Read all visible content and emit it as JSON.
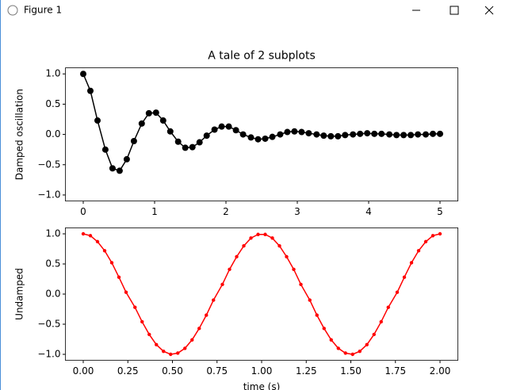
{
  "window": {
    "title": "Figure 1"
  },
  "chart_data": [
    {
      "type": "line",
      "title": "A tale of 2 subplots",
      "ylabel": "Damped oscillation",
      "x": [
        0,
        0.1,
        0.2,
        0.31,
        0.41,
        0.51,
        0.61,
        0.71,
        0.82,
        0.92,
        1.02,
        1.12,
        1.22,
        1.33,
        1.43,
        1.53,
        1.63,
        1.73,
        1.84,
        1.94,
        2.04,
        2.14,
        2.24,
        2.35,
        2.45,
        2.55,
        2.65,
        2.76,
        2.86,
        2.96,
        3.06,
        3.16,
        3.27,
        3.37,
        3.47,
        3.57,
        3.67,
        3.78,
        3.88,
        3.98,
        4.08,
        4.18,
        4.29,
        4.39,
        4.49,
        4.59,
        4.69,
        4.8,
        4.9,
        5
      ],
      "series": [
        {
          "color": "#000000",
          "marker": "o",
          "values": [
            1,
            0.72,
            0.23,
            -0.25,
            -0.56,
            -0.6,
            -0.41,
            -0.11,
            0.18,
            0.35,
            0.36,
            0.23,
            0.05,
            -0.12,
            -0.22,
            -0.21,
            -0.13,
            -0.02,
            0.08,
            0.13,
            0.13,
            0.07,
            0,
            -0.05,
            -0.08,
            -0.07,
            -0.04,
            0,
            0.04,
            0.05,
            0.04,
            0.02,
            0,
            -0.02,
            -0.03,
            -0.03,
            -0.01,
            0,
            0.01,
            0.02,
            0.01,
            0.01,
            0,
            -0.01,
            -0.01,
            -0.01,
            0,
            0,
            0.01,
            0.01
          ]
        }
      ],
      "xlim": [
        -0.25,
        5.25
      ],
      "xticks": [
        0,
        1,
        2,
        3,
        4,
        5
      ],
      "ylim": [
        -1.1,
        1.1
      ],
      "yticks": [
        {
          "value": -1,
          "label": "−1.0"
        },
        {
          "value": -0.5,
          "label": "−0.5"
        },
        {
          "value": 0,
          "label": "0.0"
        },
        {
          "value": 0.5,
          "label": "0.5"
        },
        {
          "value": 1,
          "label": "1.0"
        }
      ]
    },
    {
      "type": "line",
      "ylabel": "Undamped",
      "xlabel": "time (s)",
      "x": [
        0,
        0.04,
        0.08,
        0.12,
        0.16,
        0.2,
        0.24,
        0.29,
        0.33,
        0.37,
        0.41,
        0.45,
        0.49,
        0.53,
        0.57,
        0.61,
        0.65,
        0.69,
        0.73,
        0.78,
        0.82,
        0.86,
        0.9,
        0.94,
        0.98,
        1.02,
        1.06,
        1.1,
        1.14,
        1.18,
        1.22,
        1.27,
        1.31,
        1.35,
        1.39,
        1.43,
        1.47,
        1.51,
        1.55,
        1.59,
        1.63,
        1.67,
        1.71,
        1.76,
        1.8,
        1.84,
        1.88,
        1.92,
        1.96,
        2
      ],
      "series": [
        {
          "color": "#ff0000",
          "marker": ".",
          "values": [
            1,
            0.97,
            0.87,
            0.72,
            0.52,
            0.28,
            0.03,
            -0.22,
            -0.46,
            -0.67,
            -0.84,
            -0.95,
            -1,
            -0.98,
            -0.9,
            -0.76,
            -0.57,
            -0.35,
            -0.1,
            0.16,
            0.41,
            0.62,
            0.8,
            0.93,
            0.99,
            0.99,
            0.93,
            0.8,
            0.62,
            0.41,
            0.16,
            -0.1,
            -0.35,
            -0.57,
            -0.76,
            -0.9,
            -0.98,
            -1,
            -0.95,
            -0.84,
            -0.67,
            -0.46,
            -0.22,
            0.03,
            0.28,
            0.52,
            0.72,
            0.87,
            0.97,
            1
          ]
        }
      ],
      "xlim": [
        -0.1,
        2.1
      ],
      "xticks": [
        {
          "value": 0,
          "label": "0.00"
        },
        {
          "value": 0.25,
          "label": "0.25"
        },
        {
          "value": 0.5,
          "label": "0.50"
        },
        {
          "value": 0.75,
          "label": "0.75"
        },
        {
          "value": 1,
          "label": "1.00"
        },
        {
          "value": 1.25,
          "label": "1.25"
        },
        {
          "value": 1.5,
          "label": "1.50"
        },
        {
          "value": 1.75,
          "label": "1.75"
        },
        {
          "value": 2,
          "label": "2.00"
        }
      ],
      "ylim": [
        -1.1,
        1.1
      ],
      "yticks": [
        {
          "value": -1,
          "label": "−1.0"
        },
        {
          "value": -0.5,
          "label": "−0.5"
        },
        {
          "value": 0,
          "label": "0.0"
        },
        {
          "value": 0.5,
          "label": "0.5"
        },
        {
          "value": 1,
          "label": "1.0"
        }
      ]
    }
  ]
}
